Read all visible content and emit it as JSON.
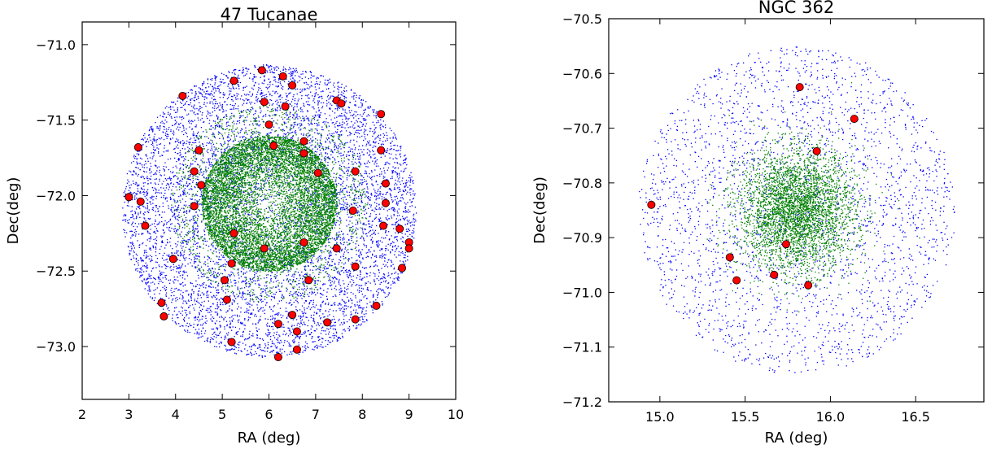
{
  "chart_data": [
    {
      "type": "scatter",
      "title": "47 Tucanae",
      "xlabel": "RA (deg)",
      "ylabel": "Dec(deg)",
      "xlim": [
        2,
        10
      ],
      "ylim": [
        -73.35,
        -70.85
      ],
      "y_inverted": true,
      "grid": false,
      "xticks": [
        2,
        3,
        4,
        5,
        6,
        7,
        8,
        9,
        10
      ],
      "xtick_labels": [
        "2",
        "3",
        "4",
        "5",
        "6",
        "7",
        "8",
        "9",
        "10"
      ],
      "yticks": [
        -71.0,
        -71.5,
        -72.0,
        -72.5,
        -73.0
      ],
      "ytick_labels": [
        "−71.0",
        "−71.5",
        "−72.0",
        "−72.5",
        "−73.0"
      ],
      "field": {
        "center": [
          6.0,
          -72.1
        ],
        "radius_ra": 3.15,
        "radius_dec": 0.97
      },
      "core": {
        "center": [
          6.0,
          -72.05
        ],
        "radius_ra": 1.45,
        "radius_dec": 0.45
      },
      "series": [
        {
          "color": "#0000ff",
          "marker": "dot",
          "description_points": "dense field stars filling ellipse RA 2.85-9.2, Dec -73.07 to -71.13"
        },
        {
          "color": "#008000",
          "marker": "dot",
          "description_points": "dense cluster members, core centered RA 6.0, Dec -72.05"
        },
        {
          "color": "#ff0000",
          "marker": "circle",
          "points": [
            [
              5.85,
              -71.17
            ],
            [
              6.3,
              -71.21
            ],
            [
              6.5,
              -71.27
            ],
            [
              5.25,
              -71.24
            ],
            [
              4.15,
              -71.34
            ],
            [
              5.9,
              -71.38
            ],
            [
              6.35,
              -71.41
            ],
            [
              7.45,
              -71.37
            ],
            [
              7.55,
              -71.39
            ],
            [
              8.4,
              -71.46
            ],
            [
              6.0,
              -71.53
            ],
            [
              6.75,
              -71.64
            ],
            [
              6.1,
              -71.67
            ],
            [
              4.5,
              -71.7
            ],
            [
              6.75,
              -71.72
            ],
            [
              3.2,
              -71.68
            ],
            [
              8.4,
              -71.7
            ],
            [
              4.4,
              -71.84
            ],
            [
              7.05,
              -71.85
            ],
            [
              7.85,
              -71.84
            ],
            [
              4.55,
              -71.93
            ],
            [
              8.5,
              -71.92
            ],
            [
              3.0,
              -72.01
            ],
            [
              3.25,
              -72.04
            ],
            [
              8.5,
              -72.05
            ],
            [
              4.4,
              -72.07
            ],
            [
              7.8,
              -72.1
            ],
            [
              3.35,
              -72.2
            ],
            [
              8.45,
              -72.2
            ],
            [
              8.8,
              -72.22
            ],
            [
              5.25,
              -72.25
            ],
            [
              6.75,
              -72.31
            ],
            [
              9.0,
              -72.31
            ],
            [
              5.9,
              -72.35
            ],
            [
              7.45,
              -72.35
            ],
            [
              9.0,
              -72.35
            ],
            [
              3.95,
              -72.42
            ],
            [
              5.2,
              -72.45
            ],
            [
              7.85,
              -72.47
            ],
            [
              8.85,
              -72.48
            ],
            [
              5.05,
              -72.56
            ],
            [
              6.85,
              -72.56
            ],
            [
              5.1,
              -72.69
            ],
            [
              3.7,
              -72.71
            ],
            [
              8.3,
              -72.73
            ],
            [
              3.75,
              -72.8
            ],
            [
              6.5,
              -72.79
            ],
            [
              7.85,
              -72.82
            ],
            [
              7.25,
              -72.84
            ],
            [
              6.2,
              -72.85
            ],
            [
              6.6,
              -72.9
            ],
            [
              5.2,
              -72.97
            ],
            [
              6.6,
              -73.02
            ],
            [
              6.2,
              -73.07
            ]
          ]
        }
      ]
    },
    {
      "type": "scatter",
      "title": "NGC 362",
      "xlabel": "RA (deg)",
      "ylabel": "Dec(deg)",
      "xlim": [
        14.7,
        16.9
      ],
      "ylim": [
        -71.2,
        -70.5
      ],
      "y_inverted": true,
      "grid": false,
      "xticks": [
        15.0,
        15.5,
        16.0,
        16.5
      ],
      "xtick_labels": [
        "15.0",
        "15.5",
        "16.0",
        "16.5"
      ],
      "yticks": [
        -70.5,
        -70.6,
        -70.7,
        -70.8,
        -70.9,
        -71.0,
        -71.1,
        -71.2
      ],
      "ytick_labels": [
        "−70.5",
        "−70.6",
        "−70.7",
        "−70.8",
        "−70.9",
        "−71.0",
        "−71.1",
        "−71.2"
      ],
      "field": {
        "center": [
          15.8,
          -70.85
        ],
        "radius_ra": 0.93,
        "radius_dec": 0.3
      },
      "core": {
        "center": [
          15.8,
          -70.85
        ],
        "radius_ra": 0.4,
        "radius_dec": 0.13
      },
      "series": [
        {
          "color": "#0000ff",
          "marker": "dot",
          "description_points": "sparse field stars filling ellipse RA 14.88-16.72, Dec -71.15 to -70.55"
        },
        {
          "color": "#008000",
          "marker": "dot",
          "description_points": "cluster members concentrated around RA 15.8, Dec -70.85"
        },
        {
          "color": "#ff0000",
          "marker": "circle",
          "points": [
            [
              15.82,
              -70.625
            ],
            [
              16.14,
              -70.683
            ],
            [
              15.92,
              -70.742
            ],
            [
              14.95,
              -70.84
            ],
            [
              15.74,
              -70.912
            ],
            [
              15.41,
              -70.936
            ],
            [
              15.67,
              -70.968
            ],
            [
              15.45,
              -70.978
            ],
            [
              15.87,
              -70.987
            ]
          ]
        }
      ]
    }
  ]
}
